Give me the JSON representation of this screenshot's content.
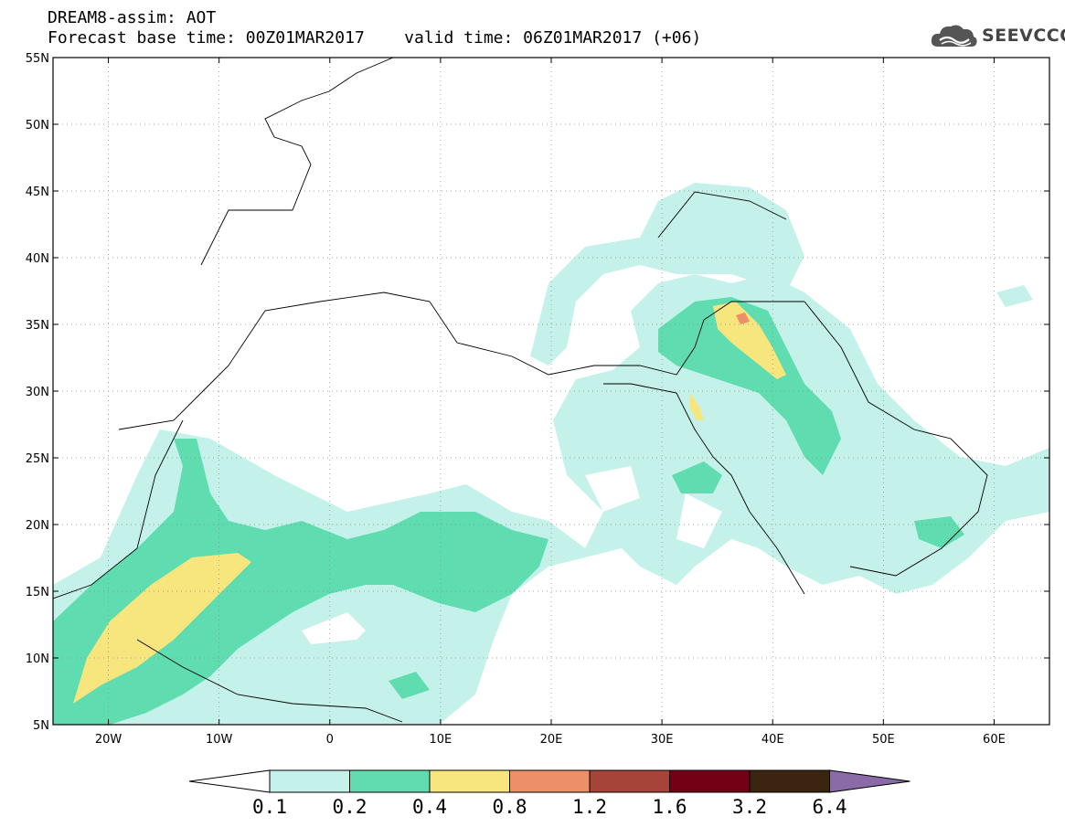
{
  "header": {
    "title": "DREAM8-assim: AOT",
    "base_time_label": "Forecast base time: 00Z01MAR2017",
    "valid_time_label": "valid time: 06Z01MAR2017 (+06)"
  },
  "logo": {
    "text": "SEEVCCC",
    "icon": "cloud-icon"
  },
  "map": {
    "lon_range": [
      -25,
      65
    ],
    "lat_range": [
      5,
      55
    ],
    "lat_labels": [
      "5N",
      "10N",
      "15N",
      "20N",
      "25N",
      "30N",
      "35N",
      "40N",
      "45N",
      "50N",
      "55N"
    ],
    "lon_labels": [
      "20W",
      "10W",
      "0",
      "10E",
      "20E",
      "30E",
      "40E",
      "50E",
      "60E"
    ]
  },
  "colorbar": {
    "labels": [
      "0.1",
      "0.2",
      "0.4",
      "0.8",
      "1.2",
      "1.6",
      "3.2",
      "6.4"
    ],
    "colors": [
      "#ffffff",
      "#c4f1ea",
      "#5fdcb0",
      "#f7e57d",
      "#ec9069",
      "#a6443a",
      "#740016",
      "#3b2410",
      "#8a6aa7"
    ]
  }
}
